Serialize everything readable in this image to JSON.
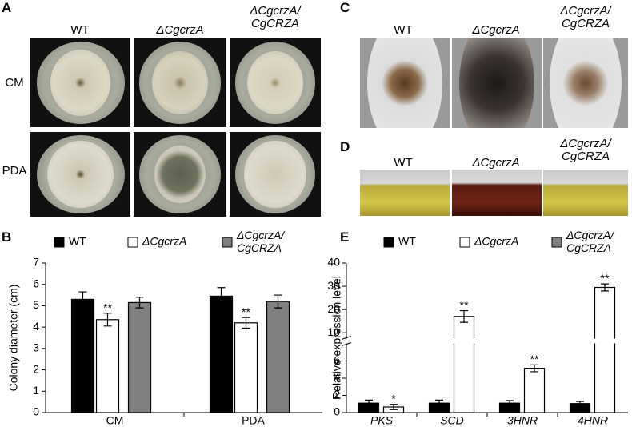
{
  "panel_labels": [
    "A",
    "B",
    "C",
    "D",
    "E"
  ],
  "strains": [
    "WT",
    "ΔCgcrzA",
    "ΔCgcrzA/\nCgCRZA"
  ],
  "media": [
    "CM",
    "PDA"
  ],
  "chart_data": [
    {
      "type": "bar",
      "y_label": "Colony diameter (cm)",
      "categories": [
        "CM",
        "PDA"
      ],
      "ylim": [
        0,
        7
      ],
      "yticks": [
        0,
        1,
        2,
        3,
        4,
        5,
        6,
        7
      ],
      "series": [
        {
          "name": "WT",
          "color": "#000000",
          "values": [
            5.3,
            5.45
          ],
          "errors": [
            0.35,
            0.4
          ]
        },
        {
          "name": "ΔCgcrzA",
          "color": "#ffffff",
          "values": [
            4.35,
            4.2
          ],
          "errors": [
            0.3,
            0.25
          ],
          "significance": [
            "**",
            "**"
          ]
        },
        {
          "name": "ΔCgcrzA/\nCgCRZA",
          "color": "#808080",
          "values": [
            5.15,
            5.2
          ],
          "errors": [
            0.25,
            0.3
          ]
        }
      ]
    },
    {
      "type": "bar",
      "y_label": "Relative expression level",
      "categories": [
        "PKS",
        "SCD",
        "3HNR",
        "4HNR"
      ],
      "broken_axis": true,
      "ylim": [
        0,
        40
      ],
      "yticks": [
        0,
        2,
        4,
        6,
        10,
        20,
        30,
        40
      ],
      "series": [
        {
          "name": "WT",
          "color": "#000000",
          "values": [
            1.1,
            1.1,
            1.1,
            1.05
          ],
          "errors": [
            0.35,
            0.35,
            0.3,
            0.25
          ]
        },
        {
          "name": "ΔCgcrzA",
          "color": "#ffffff",
          "values": [
            0.65,
            17,
            5.15,
            29.5
          ],
          "errors": [
            0.3,
            2.5,
            0.4,
            1.5
          ],
          "significance": [
            "*",
            "**",
            "**",
            "**"
          ]
        },
        {
          "name": "ΔCgcrzA/\nCgCRZA",
          "color": "#808080",
          "values": [
            null,
            null,
            null,
            null
          ]
        }
      ]
    }
  ]
}
